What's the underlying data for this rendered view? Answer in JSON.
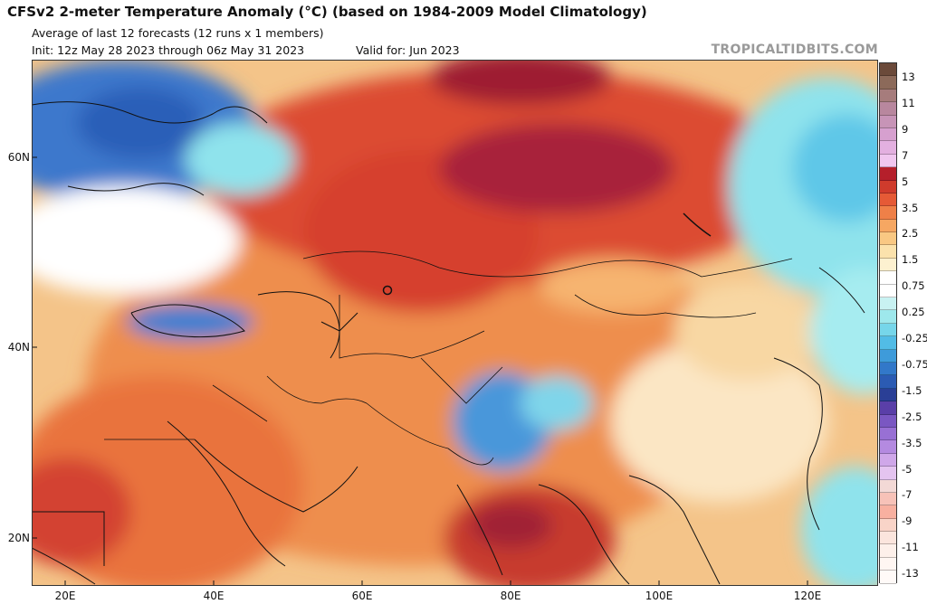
{
  "header": {
    "title": "CFSv2 2-meter Temperature Anomaly (°C) (based on 1984-2009 Model Climatology)",
    "subtitle": "Average of last 12 forecasts (12 runs x 1 members)",
    "init": "Init: 12z May 28 2023 through 06z May 31 2023",
    "valid": "Valid for: Jun 2023",
    "brand": "TROPICALTIDBITS.COM"
  },
  "map": {
    "lat_labels": [
      "60N",
      "40N",
      "20N"
    ],
    "lon_labels": [
      "20E",
      "40E",
      "60E",
      "80E",
      "100E",
      "120E"
    ],
    "extent": {
      "lon": [
        15,
        129
      ],
      "lat": [
        15,
        70
      ]
    }
  },
  "colorbar": {
    "labels": [
      "13",
      "11",
      "9",
      "7",
      "5",
      "3.5",
      "2.5",
      "1.5",
      "0.75",
      "0.25",
      "-0.25",
      "-0.75",
      "-1.5",
      "-2.5",
      "-3.5",
      "-5",
      "-7",
      "-9",
      "-11",
      "-13"
    ],
    "colors": [
      "#6b4a3a",
      "#8c6a5a",
      "#a67c7c",
      "#b8879e",
      "#c794b7",
      "#d6a0cf",
      "#e3b0e0",
      "#f0c6ef",
      "#b51f2b",
      "#cf3b2c",
      "#e55a36",
      "#ef8048",
      "#f6a762",
      "#f9c883",
      "#fbe2ac",
      "#fdf1d0",
      "#ffffff",
      "#ffffff",
      "#c8f2f2",
      "#9ee8ec",
      "#76d6ea",
      "#52bce6",
      "#3e9bda",
      "#3278c9",
      "#2b5bb3",
      "#2a3f96",
      "#5a3fa8",
      "#7a57c2",
      "#9870d4",
      "#b48ae0",
      "#cfa7e9",
      "#e4c4f0",
      "#f3d9d6",
      "#f7c2b8",
      "#f8b0a0",
      "#f9d4c8",
      "#fbe5dd",
      "#fdf0ea",
      "#fff6f2",
      "#fffaf8"
    ]
  },
  "colors": {
    "deep_red": "#9e1f32",
    "red": "#d9442d",
    "orange": "#ef8a4a",
    "light_orange": "#f6b46e",
    "pale": "#fbe2ac",
    "blue": "#3e7fd0",
    "cyan": "#7fe0ec"
  }
}
